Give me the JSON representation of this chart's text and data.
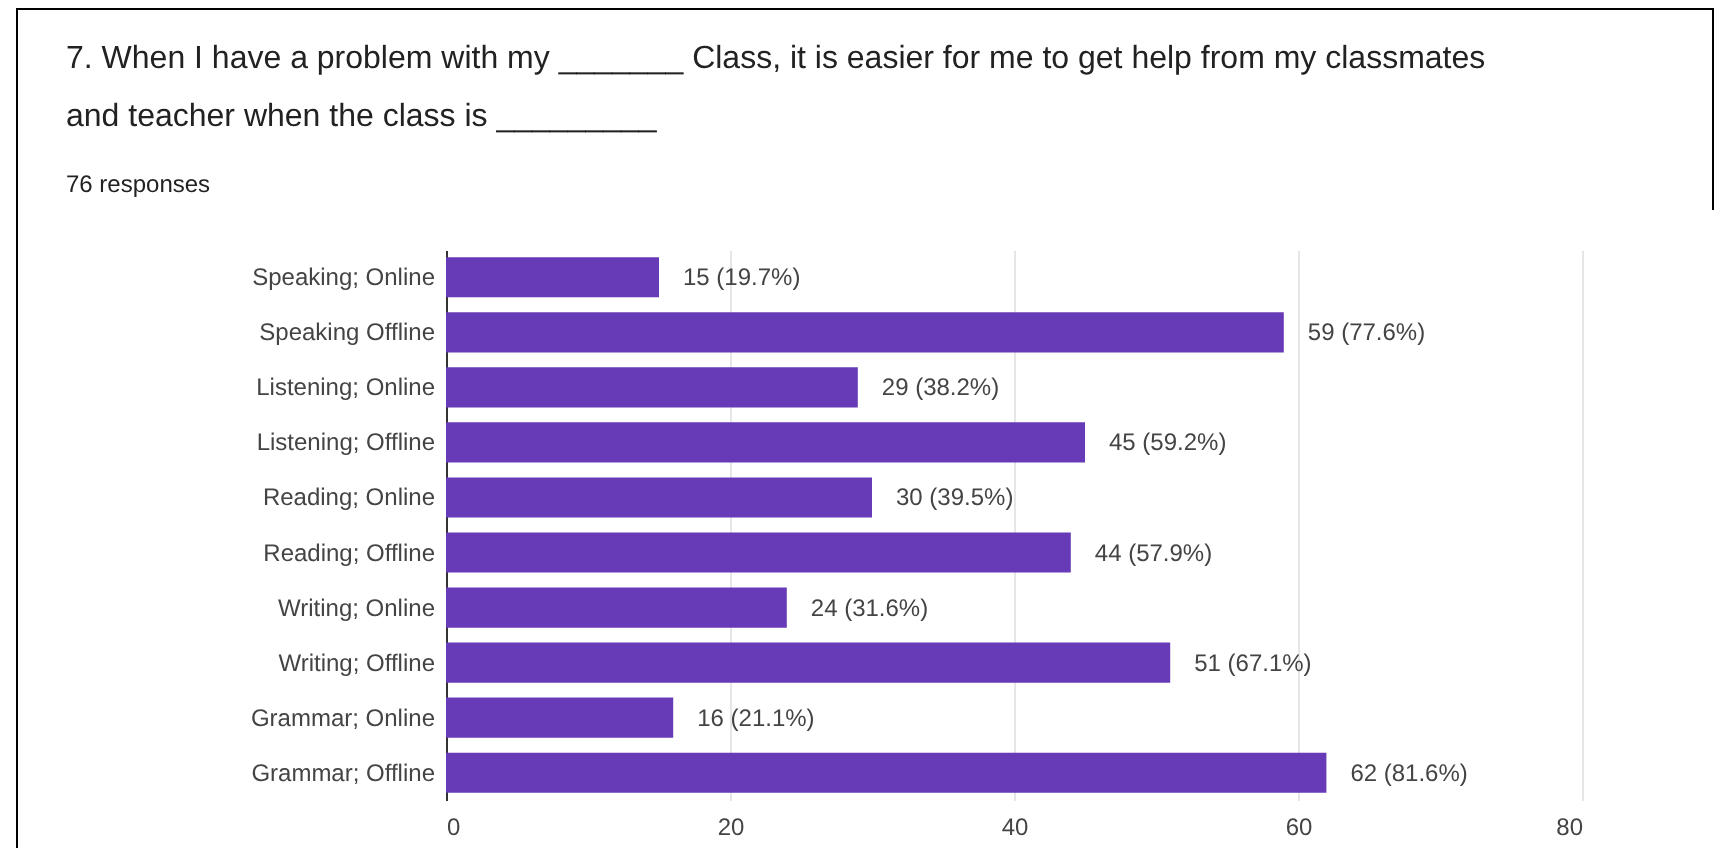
{
  "chart_data": {
    "type": "bar",
    "orientation": "horizontal",
    "title": "7.  When I have a problem with my _______ Class, it is easier for me to get help from my classmates and teacher when the class is _________",
    "subtitle": "76 responses",
    "categories": [
      "Speaking; Online",
      "Speaking Offline",
      "Listening; Online",
      "Listening; Offline",
      "Reading; Online",
      "Reading; Offline",
      "Writing; Online",
      "Writing; Offline",
      "Grammar; Online",
      "Grammar; Offline"
    ],
    "values": [
      15,
      59,
      29,
      45,
      30,
      44,
      24,
      51,
      16,
      62
    ],
    "value_labels": [
      "15 (19.7%)",
      "59 (77.6%)",
      "29 (38.2%)",
      "45 (59.2%)",
      "30 (39.5%)",
      "44 (57.9%)",
      "24 (31.6%)",
      "51 (67.1%)",
      "16 (21.1%)",
      "62 (81.6%)"
    ],
    "color": "#673ab7",
    "xlim": [
      0,
      80
    ],
    "xticks": [
      0,
      20,
      40,
      60,
      80
    ],
    "grid": "x"
  }
}
